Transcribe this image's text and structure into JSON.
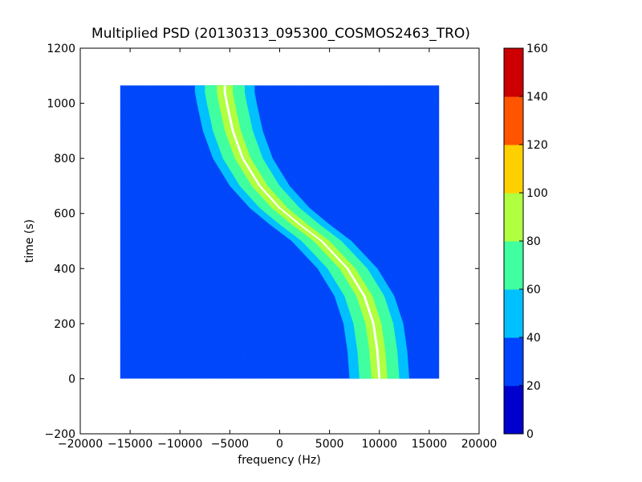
{
  "chart_data": {
    "type": "heatmap",
    "title": "Multiplied PSD (20130313_095300_COSMOS2463_TRO)",
    "xlabel": "frequency (Hz)",
    "ylabel": "time (s)",
    "xlim": [
      -20000,
      20000
    ],
    "ylim": [
      -200,
      1200
    ],
    "x_ticks": [
      -20000,
      -15000,
      -10000,
      -5000,
      0,
      5000,
      10000,
      15000,
      20000
    ],
    "x_tick_labels": [
      "−20000",
      "−15000",
      "−10000",
      "−5000",
      "0",
      "5000",
      "10000",
      "15000",
      "20000"
    ],
    "y_ticks": [
      -200,
      0,
      200,
      400,
      600,
      800,
      1000,
      1200
    ],
    "y_tick_labels": [
      "−200",
      "0",
      "200",
      "400",
      "600",
      "800",
      "1000",
      "1200"
    ],
    "data_extent": {
      "x": [
        -16000,
        16000
      ],
      "y": [
        0,
        1065
      ]
    },
    "background_level": 25,
    "colormap": "jet",
    "colorbar": {
      "min": 0,
      "max": 160,
      "levels": [
        0,
        20,
        40,
        60,
        80,
        100,
        120,
        140,
        160
      ],
      "tick_labels": [
        "0",
        "20",
        "40",
        "60",
        "80",
        "100",
        "120",
        "140",
        "160"
      ],
      "colors": [
        "#0000cc",
        "#0044ff",
        "#00c0ff",
        "#40ffa0",
        "#b0ff40",
        "#ffd000",
        "#ff5500",
        "#cc0000"
      ]
    },
    "doppler_curve": {
      "description": "signal frequency vs time",
      "points": [
        {
          "t": 1040,
          "f": -5500
        },
        {
          "t": 1000,
          "f": -5300
        },
        {
          "t": 900,
          "f": -4700
        },
        {
          "t": 800,
          "f": -3700
        },
        {
          "t": 700,
          "f": -2000
        },
        {
          "t": 620,
          "f": 0
        },
        {
          "t": 560,
          "f": 2000
        },
        {
          "t": 500,
          "f": 4200
        },
        {
          "t": 400,
          "f": 6800
        },
        {
          "t": 300,
          "f": 8500
        },
        {
          "t": 200,
          "f": 9400
        },
        {
          "t": 100,
          "f": 9800
        },
        {
          "t": 0,
          "f": 10000
        }
      ],
      "band_levels": [
        {
          "half_width_hz": 3000,
          "level": 50
        },
        {
          "half_width_hz": 2000,
          "level": 70
        },
        {
          "half_width_hz": 800,
          "level": 90
        },
        {
          "half_width_hz": 120,
          "level": 160
        }
      ]
    }
  }
}
